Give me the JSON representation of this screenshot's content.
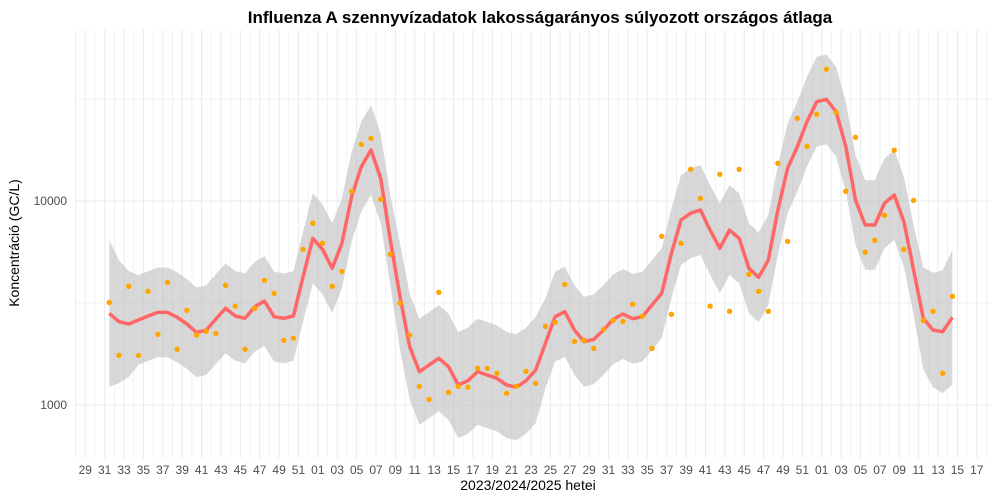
{
  "chart_data": {
    "type": "line",
    "title": "Influenza A szennyvízadatok lakosságarányos súlyozott országos átlaga",
    "xlabel": "2023/2024/2025 hetei",
    "ylabel": "Koncentráció (GC/L)",
    "y_scale": "log10",
    "ylim": [
      537,
      68900
    ],
    "y_ticks": [
      1000,
      10000
    ],
    "y_tick_labels": [
      "1000",
      "10000"
    ],
    "x_tick_labels": [
      "29",
      "31",
      "33",
      "35",
      "37",
      "39",
      "41",
      "43",
      "45",
      "47",
      "49",
      "51",
      "01",
      "03",
      "05",
      "07",
      "09",
      "11",
      "13",
      "15",
      "17",
      "19",
      "21",
      "23",
      "25",
      "27",
      "29",
      "31",
      "33",
      "35",
      "37",
      "39",
      "41",
      "43",
      "45",
      "47",
      "49",
      "51",
      "01",
      "03",
      "05",
      "07",
      "09",
      "11",
      "13",
      "15",
      "17"
    ],
    "x_range_weeks": [
      "2023-29",
      "2025-17"
    ],
    "grid": true,
    "legend": "none",
    "colors": {
      "points": "#FFA500",
      "line": "#FF6666",
      "ribbon": "#BEBEBE"
    },
    "weeks": [
      "2023-31",
      "2023-32",
      "2023-33",
      "2023-34",
      "2023-35",
      "2023-36",
      "2023-37",
      "2023-38",
      "2023-39",
      "2023-40",
      "2023-41",
      "2023-42",
      "2023-43",
      "2023-44",
      "2023-45",
      "2023-46",
      "2023-47",
      "2023-48",
      "2023-49",
      "2023-50",
      "2023-51",
      "2023-52",
      "2024-01",
      "2024-02",
      "2024-03",
      "2024-04",
      "2024-05",
      "2024-06",
      "2024-07",
      "2024-08",
      "2024-09",
      "2024-10",
      "2024-11",
      "2024-12",
      "2024-13",
      "2024-14",
      "2024-15",
      "2024-16",
      "2024-17",
      "2024-18",
      "2024-19",
      "2024-20",
      "2024-21",
      "2024-22",
      "2024-23",
      "2024-24",
      "2024-25",
      "2024-26",
      "2024-27",
      "2024-28",
      "2024-29",
      "2024-30",
      "2024-31",
      "2024-32",
      "2024-33",
      "2024-34",
      "2024-35",
      "2024-36",
      "2024-37",
      "2024-38",
      "2024-39",
      "2024-40",
      "2024-41",
      "2024-42",
      "2024-43",
      "2024-44",
      "2024-45",
      "2024-46",
      "2024-47",
      "2024-48",
      "2024-49",
      "2024-50",
      "2024-51",
      "2024-52",
      "2025-01",
      "2025-02",
      "2025-03",
      "2025-04",
      "2025-05",
      "2025-06",
      "2025-07",
      "2025-08",
      "2025-09",
      "2025-10",
      "2025-11",
      "2025-12",
      "2025-13",
      "2025-14"
    ],
    "series": [
      {
        "kind": "points",
        "values": [
          3180,
          1750,
          3820,
          1750,
          3610,
          2220,
          3990,
          1875,
          2910,
          2200,
          2300,
          2245,
          3860,
          3050,
          1875,
          2980,
          4085,
          3530,
          2075,
          2125,
          5800,
          7780,
          6210,
          3820,
          4520,
          11170,
          18950,
          20290,
          10190,
          5480,
          3160,
          2200,
          1235,
          1066,
          3570,
          1154,
          1235,
          1222,
          1513,
          1513,
          1430,
          1141,
          1235,
          1463,
          1277,
          2430,
          2543,
          3900,
          2050,
          2075,
          1895,
          2350,
          2600,
          2570,
          3120,
          2720,
          1895,
          6710,
          2785,
          6210,
          14300,
          10300,
          3050,
          13520,
          2880,
          14300,
          4370,
          3610,
          2880,
          15300,
          6340,
          25420,
          18540,
          26600,
          44250,
          27230,
          11170,
          20520,
          5610,
          6420,
          8510,
          17740,
          5800,
          10070,
          2600,
          2880,
          1430,
          3410
        ]
      },
      {
        "kind": "smooth",
        "values": [
          2813,
          2560,
          2495,
          2610,
          2730,
          2845,
          2845,
          2690,
          2495,
          2270,
          2330,
          2640,
          2980,
          2730,
          2660,
          3030,
          3235,
          2710,
          2660,
          2730,
          4255,
          6560,
          5800,
          4680,
          6210,
          10500,
          14730,
          17780,
          12910,
          6440,
          3400,
          1930,
          1456,
          1570,
          1694,
          1541,
          1253,
          1316,
          1456,
          1403,
          1351,
          1253,
          1221,
          1316,
          1485,
          2006,
          2710,
          2865,
          2330,
          2043,
          2100,
          2330,
          2630,
          2793,
          2650,
          2710,
          3090,
          3525,
          5540,
          8070,
          8710,
          9030,
          7200,
          5865,
          7200,
          6560,
          4680,
          4225,
          5140,
          9030,
          14460,
          18450,
          24480,
          30690,
          31500,
          27400,
          18450,
          10115,
          7630,
          7630,
          9740,
          10700,
          7920,
          4590,
          2660,
          2330,
          2287,
          2690
        ]
      },
      {
        "kind": "ci_lower",
        "values": [
          1228,
          1280,
          1370,
          1572,
          1645,
          1714,
          1714,
          1620,
          1503,
          1367,
          1404,
          1590,
          1795,
          1645,
          1602,
          1825,
          1949,
          1633,
          1602,
          1645,
          2563,
          3952,
          3494,
          2819,
          3741,
          6325,
          8873,
          10711,
          7777,
          3880,
          1868,
          1060,
          800,
          863,
          931,
          847,
          688,
          723,
          800,
          771,
          742,
          688,
          671,
          723,
          816,
          1208,
          1633,
          1726,
          1404,
          1231,
          1265,
          1404,
          1584,
          1683,
          1596,
          1633,
          1861,
          2123,
          3337,
          4861,
          5247,
          5440,
          4337,
          3533,
          4337,
          3952,
          2819,
          2545,
          3096,
          5440,
          8711,
          11114,
          14747,
          18488,
          18976,
          16506,
          11114,
          6093,
          4596,
          4596,
          5867,
          6446,
          4771,
          2765,
          1494,
          1220,
          1144,
          1257
        ]
      },
      {
        "kind": "ci_upper",
        "values": [
          6440,
          5120,
          4540,
          4333,
          4532,
          4723,
          4723,
          4465,
          4142,
          3768,
          3868,
          4382,
          4947,
          4532,
          4416,
          5030,
          5370,
          4499,
          4416,
          4532,
          7063,
          10890,
          9628,
          7769,
          10309,
          17430,
          24452,
          29515,
          21431,
          10690,
          6188,
          3513,
          2650,
          2857,
          3083,
          2805,
          2280,
          2395,
          2650,
          2553,
          2459,
          2280,
          2222,
          2395,
          2703,
          3330,
          4499,
          4756,
          3868,
          3391,
          3486,
          3868,
          4366,
          4636,
          4399,
          4499,
          5129,
          5852,
          9196,
          13396,
          14459,
          14990,
          11952,
          9736,
          11952,
          10890,
          7769,
          7014,
          8532,
          14990,
          24004,
          30627,
          40637,
          50945,
          52290,
          45484,
          30627,
          16791,
          12666,
          12666,
          16168,
          17762,
          13147,
          7619,
          4735,
          4450,
          4574,
          5757
        ]
      }
    ]
  }
}
